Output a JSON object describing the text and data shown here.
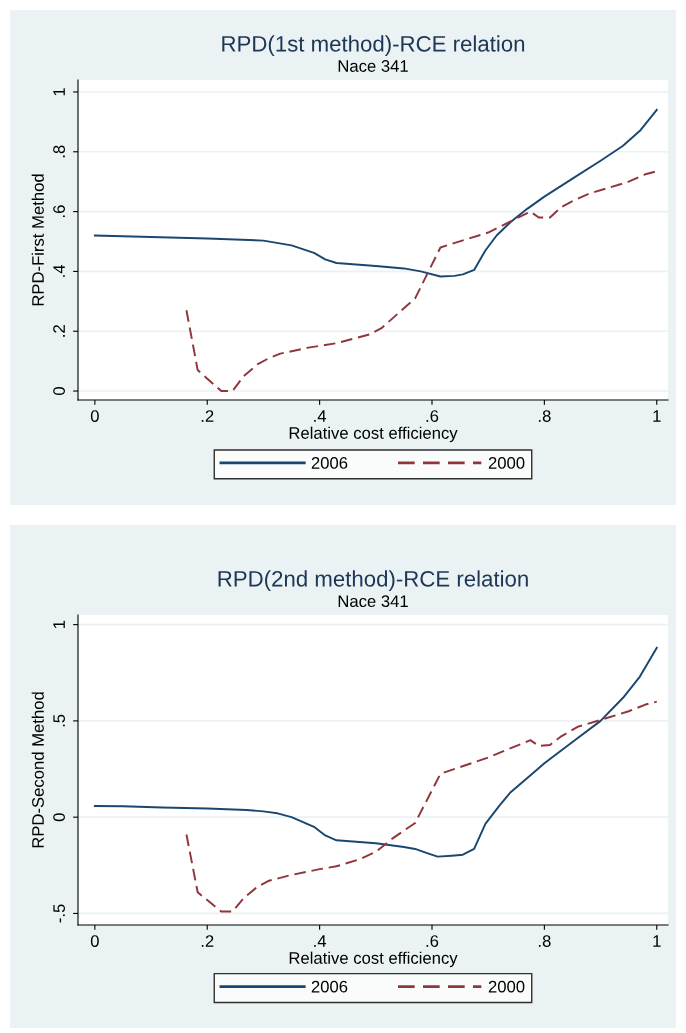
{
  "chart_data": [
    {
      "type": "line",
      "title": "RPD(1st method)-RCE relation",
      "subtitle": "Nace 341",
      "xlabel": "Relative cost efficiency",
      "ylabel": "RPD-First Method",
      "xlim": [
        -0.03,
        1.02
      ],
      "ylim": [
        -0.03,
        1.04
      ],
      "xticks": [
        {
          "value": 0,
          "label": "0"
        },
        {
          "value": 0.2,
          "label": ".2"
        },
        {
          "value": 0.4,
          "label": ".4"
        },
        {
          "value": 0.6,
          "label": ".6"
        },
        {
          "value": 0.8,
          "label": ".8"
        },
        {
          "value": 1,
          "label": "1"
        }
      ],
      "yticks": [
        {
          "value": 0,
          "label": "0"
        },
        {
          "value": 0.2,
          "label": ".2"
        },
        {
          "value": 0.4,
          "label": ".4"
        },
        {
          "value": 0.6,
          "label": ".6"
        },
        {
          "value": 0.8,
          "label": ".8"
        },
        {
          "value": 1,
          "label": "1"
        }
      ],
      "grid": "y",
      "legend": "bottom",
      "series": [
        {
          "name": "2006",
          "color": "#1a476f",
          "line_style": "solid",
          "x": [
            0,
            0.1,
            0.2,
            0.3,
            0.35,
            0.39,
            0.41,
            0.43,
            0.5,
            0.55,
            0.58,
            0.615,
            0.64,
            0.655,
            0.675,
            0.695,
            0.715,
            0.74,
            0.77,
            0.8,
            0.85,
            0.9,
            0.94,
            0.97,
            1.0
          ],
          "values": [
            0.52,
            0.515,
            0.51,
            0.503,
            0.487,
            0.462,
            0.44,
            0.428,
            0.418,
            0.41,
            0.4,
            0.383,
            0.385,
            0.39,
            0.405,
            0.47,
            0.52,
            0.565,
            0.61,
            0.65,
            0.71,
            0.77,
            0.82,
            0.87,
            0.94
          ]
        },
        {
          "name": "2000",
          "color": "#90353b",
          "line_style": "dashed",
          "x": [
            0.163,
            0.183,
            0.225,
            0.245,
            0.265,
            0.29,
            0.31,
            0.33,
            0.38,
            0.43,
            0.47,
            0.49,
            0.51,
            0.57,
            0.615,
            0.7,
            0.775,
            0.79,
            0.81,
            0.83,
            0.85,
            0.88,
            0.95,
            0.98,
            1.0
          ],
          "values": [
            0.27,
            0.07,
            0.0,
            0.0,
            0.05,
            0.09,
            0.11,
            0.125,
            0.145,
            0.16,
            0.18,
            0.19,
            0.21,
            0.31,
            0.48,
            0.53,
            0.6,
            0.58,
            0.58,
            0.615,
            0.635,
            0.66,
            0.7,
            0.725,
            0.735
          ]
        }
      ]
    },
    {
      "type": "line",
      "title": "RPD(2nd method)-RCE relation",
      "subtitle": "Nace 341",
      "xlabel": "Relative cost efficiency",
      "ylabel": "RPD-Second Method",
      "xlim": [
        -0.03,
        1.02
      ],
      "ylim": [
        -0.56,
        1.05
      ],
      "xticks": [
        {
          "value": 0,
          "label": "0"
        },
        {
          "value": 0.2,
          "label": ".2"
        },
        {
          "value": 0.4,
          "label": ".4"
        },
        {
          "value": 0.6,
          "label": ".6"
        },
        {
          "value": 0.8,
          "label": ".8"
        },
        {
          "value": 1,
          "label": "1"
        }
      ],
      "yticks": [
        {
          "value": -0.5,
          "label": "-.5"
        },
        {
          "value": 0,
          "label": "0"
        },
        {
          "value": 0.5,
          "label": ".5"
        },
        {
          "value": 1,
          "label": "1"
        }
      ],
      "grid": "y",
      "legend": "bottom",
      "series": [
        {
          "name": "2006",
          "color": "#1a476f",
          "line_style": "solid",
          "x": [
            0,
            0.05,
            0.12,
            0.2,
            0.27,
            0.3,
            0.325,
            0.35,
            0.39,
            0.41,
            0.43,
            0.5,
            0.55,
            0.57,
            0.59,
            0.61,
            0.635,
            0.655,
            0.675,
            0.695,
            0.72,
            0.74,
            0.78,
            0.8,
            0.85,
            0.9,
            0.94,
            0.97,
            1.0
          ],
          "values": [
            0.058,
            0.057,
            0.05,
            0.045,
            0.037,
            0.03,
            0.02,
            0.0,
            -0.05,
            -0.095,
            -0.12,
            -0.135,
            -0.155,
            -0.165,
            -0.185,
            -0.205,
            -0.2,
            -0.195,
            -0.165,
            -0.035,
            0.06,
            0.13,
            0.23,
            0.28,
            0.39,
            0.5,
            0.62,
            0.73,
            0.88
          ]
        },
        {
          "name": "2000",
          "color": "#90353b",
          "line_style": "dashed",
          "x": [
            0.163,
            0.183,
            0.225,
            0.245,
            0.265,
            0.29,
            0.31,
            0.35,
            0.4,
            0.43,
            0.47,
            0.5,
            0.53,
            0.57,
            0.615,
            0.7,
            0.775,
            0.79,
            0.81,
            0.83,
            0.86,
            0.9,
            0.95,
            0.98,
            1.0
          ],
          "values": [
            -0.09,
            -0.39,
            -0.49,
            -0.49,
            -0.42,
            -0.36,
            -0.33,
            -0.3,
            -0.27,
            -0.255,
            -0.22,
            -0.18,
            -0.11,
            -0.03,
            0.225,
            0.31,
            0.4,
            0.37,
            0.375,
            0.42,
            0.47,
            0.505,
            0.55,
            0.585,
            0.6
          ]
        }
      ]
    }
  ]
}
